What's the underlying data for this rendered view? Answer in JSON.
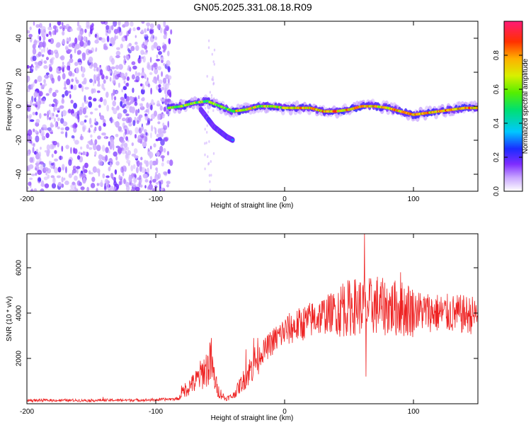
{
  "title": "GN05.2025.331.08.18.R09",
  "chart_data": [
    {
      "type": "heatmap",
      "name": "spectrogram",
      "xlabel": "Height of straight line (km)",
      "ylabel": "Frequency (Hz)",
      "xlim": [
        -200,
        150
      ],
      "ylim": [
        -50,
        50
      ],
      "xticks": [
        -200,
        -100,
        0,
        100
      ],
      "yticks": [
        -40,
        -20,
        0,
        20,
        40
      ],
      "colorbar": {
        "label": "Normalized spectral amplitude",
        "range": [
          0,
          1
        ],
        "ticks": [
          0.0,
          0.2,
          0.4,
          0.6,
          0.8
        ]
      },
      "ridge": {
        "x": [
          -90,
          -80,
          -70,
          -60,
          -50,
          -40,
          -30,
          -20,
          -10,
          0,
          10,
          20,
          30,
          40,
          50,
          60,
          70,
          80,
          90,
          100,
          110,
          120,
          130,
          140,
          150
        ],
        "y": [
          -1,
          0,
          2,
          3,
          0,
          -3,
          -2,
          0,
          0,
          -1,
          -1,
          -1,
          -3,
          -3,
          -2,
          0,
          0,
          -1,
          -3,
          -5,
          -4,
          -3,
          -2,
          -1,
          -1
        ]
      },
      "branch": {
        "x": [
          -65,
          -55,
          -45,
          -40
        ],
        "y": [
          -2,
          -12,
          -18,
          -20
        ]
      },
      "noise_region": {
        "x": [
          -200,
          -88
        ],
        "y": [
          -50,
          50
        ]
      }
    },
    {
      "type": "line",
      "name": "snr",
      "xlabel": "Height of straight line (km)",
      "ylabel": "SNR (10 * v/v)",
      "xlim": [
        -200,
        150
      ],
      "ylim": [
        0,
        7500
      ],
      "xticks": [
        -200,
        -100,
        0,
        100
      ],
      "yticks": [
        2000,
        4000,
        6000
      ],
      "color": "#ee2222",
      "envelope": {
        "x": [
          -200,
          -150,
          -100,
          -82,
          -78,
          -70,
          -62,
          -57,
          -52,
          -46,
          -40,
          -30,
          -20,
          -10,
          0,
          20,
          40,
          55,
          70,
          90,
          120,
          150
        ],
        "y": [
          150,
          150,
          170,
          230,
          600,
          900,
          1500,
          1700,
          600,
          220,
          350,
          1200,
          2100,
          2700,
          3200,
          3700,
          4100,
          4300,
          4300,
          4200,
          4000,
          3900
        ]
      },
      "spikes": {
        "x": [
          -141,
          -80,
          -72,
          -58,
          -57,
          -30,
          -24,
          45,
          62,
          63,
          72,
          90
        ],
        "y": [
          300,
          800,
          1200,
          2700,
          2900,
          2400,
          2900,
          5300,
          7500,
          1200,
          5600,
          5800
        ]
      }
    }
  ]
}
